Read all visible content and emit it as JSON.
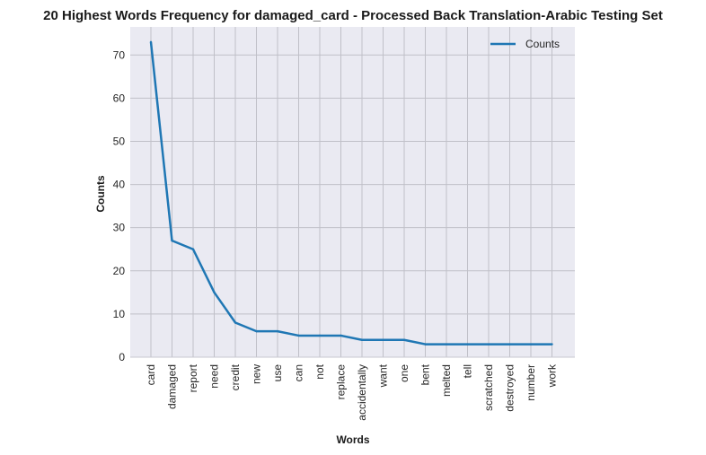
{
  "chart_data": {
    "type": "line",
    "title": "20 Highest Words Frequency for damaged_card - Processed Back Translation-Arabic Testing Set",
    "xlabel": "Words",
    "ylabel": "Counts",
    "categories": [
      "card",
      "damaged",
      "report",
      "need",
      "credit",
      "new",
      "use",
      "can",
      "not",
      "replace",
      "accidentally",
      "want",
      "one",
      "bent",
      "melted",
      "tell",
      "scratched",
      "destroyed",
      "number",
      "work"
    ],
    "series": [
      {
        "name": "Counts",
        "values": [
          73,
          27,
          25,
          15,
          8,
          6,
          6,
          5,
          5,
          5,
          4,
          4,
          4,
          3,
          3,
          3,
          3,
          3,
          3,
          3
        ],
        "color": "#1f77b4"
      }
    ],
    "ylim": [
      0,
      76.5
    ],
    "yticks": [
      0,
      10,
      20,
      30,
      40,
      50,
      60,
      70
    ],
    "grid": true,
    "legend_position": "top-right",
    "background_color": "#eaeaf2",
    "grid_color": "#c0c0c8"
  }
}
